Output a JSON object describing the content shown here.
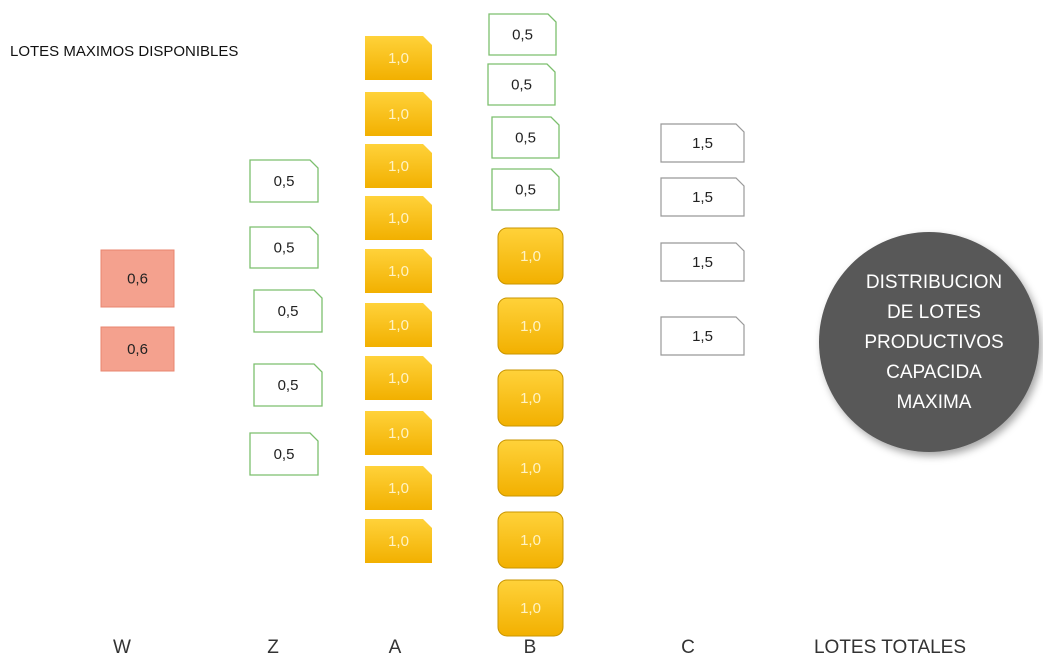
{
  "title": "LOTES MAXIMOS DISPONIBLES",
  "columns": [
    {
      "label": "W",
      "boxes": [
        "0,6",
        "0,6"
      ]
    },
    {
      "label": "Z",
      "boxes": [
        "0,5",
        "0,5",
        "0,5",
        "0,5",
        "0,5"
      ]
    },
    {
      "label": "A",
      "boxes": [
        "1,0",
        "1,0",
        "1,0",
        "1,0",
        "1,0",
        "1,0",
        "1,0",
        "1,0",
        "1,0",
        "1,0"
      ]
    },
    {
      "label": "B",
      "boxes": [
        "0,5",
        "0,5",
        "0,5",
        "0,5",
        "1,0",
        "1,0",
        "1,0",
        "1,0",
        "1,0",
        "1,0"
      ]
    },
    {
      "label": "C",
      "boxes": [
        "1,5",
        "1,5",
        "1,5",
        "1,5"
      ]
    }
  ],
  "totals_label": "LOTES TOTALES",
  "circle": {
    "lines": [
      "DISTRIBUCION",
      "DE LOTES",
      "PRODUCTIVOS",
      "CAPACIDA",
      "MAXIMA"
    ]
  }
}
